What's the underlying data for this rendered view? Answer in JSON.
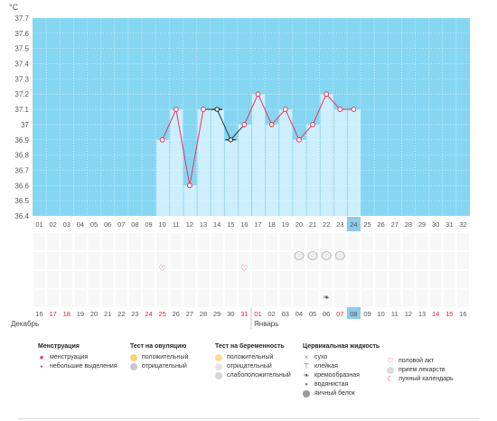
{
  "unit_label": "°C",
  "chart_data": {
    "type": "line",
    "title": "",
    "ylabel": "°C",
    "ylim": [
      36.4,
      37.7
    ],
    "y_ticks": [
      "36.4",
      "36.5",
      "36.6",
      "36.7",
      "36.8",
      "36.9",
      "37",
      "37.1",
      "37.2",
      "37.3",
      "37.4",
      "37.5",
      "37.6",
      "37.7"
    ],
    "x": [
      "01",
      "02",
      "03",
      "04",
      "05",
      "06",
      "07",
      "08",
      "09",
      "10",
      "11",
      "12",
      "13",
      "14",
      "15",
      "16",
      "17",
      "18",
      "19",
      "20",
      "21",
      "22",
      "23",
      "24",
      "25",
      "26",
      "27",
      "28",
      "29",
      "30",
      "31",
      "32"
    ],
    "highlight_day": "24",
    "series": [
      {
        "points": [
          {
            "x": 10,
            "y": 36.9,
            "type": "normal"
          },
          {
            "x": 11,
            "y": 37.1,
            "type": "normal"
          },
          {
            "x": 12,
            "y": 36.6,
            "type": "normal"
          },
          {
            "x": 13,
            "y": 37.1,
            "type": "normal"
          },
          {
            "x": 14,
            "y": 37.1,
            "type": "excluded"
          },
          {
            "x": 15,
            "y": 36.9,
            "type": "excluded"
          },
          {
            "x": 16,
            "y": 37.0,
            "type": "normal"
          },
          {
            "x": 17,
            "y": 37.2,
            "type": "normal"
          },
          {
            "x": 18,
            "y": 37.0,
            "type": "normal"
          },
          {
            "x": 19,
            "y": 37.1,
            "type": "normal"
          },
          {
            "x": 20,
            "y": 36.9,
            "type": "normal"
          },
          {
            "x": 21,
            "y": 37.0,
            "type": "normal"
          },
          {
            "x": 22,
            "y": 37.2,
            "type": "normal"
          },
          {
            "x": 23,
            "y": 37.1,
            "type": "normal"
          },
          {
            "x": 24,
            "y": 37.1,
            "type": "normal"
          }
        ]
      }
    ],
    "colors": {
      "plot_bg": "#86d6f2",
      "bar_fill": "#cdeefb",
      "line": "#e8345c",
      "excluded_line": "#333333",
      "highlight": "#8ecbe8",
      "red_date": "#e02040"
    },
    "dates": [
      {
        "d": "16",
        "red": false
      },
      {
        "d": "17",
        "red": true
      },
      {
        "d": "18",
        "red": true
      },
      {
        "d": "19",
        "red": false
      },
      {
        "d": "20",
        "red": false
      },
      {
        "d": "21",
        "red": false
      },
      {
        "d": "22",
        "red": false
      },
      {
        "d": "23",
        "red": false
      },
      {
        "d": "24",
        "red": true
      },
      {
        "d": "25",
        "red": true
      },
      {
        "d": "26",
        "red": false
      },
      {
        "d": "27",
        "red": false
      },
      {
        "d": "28",
        "red": false
      },
      {
        "d": "29",
        "red": false
      },
      {
        "d": "30",
        "red": false
      },
      {
        "d": "31",
        "red": true
      },
      {
        "d": "01",
        "red": true
      },
      {
        "d": "02",
        "red": false
      },
      {
        "d": "03",
        "red": false
      },
      {
        "d": "04",
        "red": false
      },
      {
        "d": "05",
        "red": false
      },
      {
        "d": "06",
        "red": false
      },
      {
        "d": "07",
        "red": true
      },
      {
        "d": "08",
        "red": false
      },
      {
        "d": "09",
        "red": false
      },
      {
        "d": "10",
        "red": false
      },
      {
        "d": "11",
        "red": false
      },
      {
        "d": "12",
        "red": false
      },
      {
        "d": "13",
        "red": false
      },
      {
        "d": "14",
        "red": true
      },
      {
        "d": "15",
        "red": true
      },
      {
        "d": "16",
        "red": false
      }
    ],
    "months": [
      {
        "name": "Декабрь",
        "start_day": 1
      },
      {
        "name": "Январь",
        "start_day": 17
      }
    ],
    "markers": [
      {
        "day": 10,
        "kind": "heart"
      },
      {
        "day": 16,
        "kind": "heart"
      },
      {
        "day": 20,
        "kind": "egg"
      },
      {
        "day": 21,
        "kind": "egg"
      },
      {
        "day": 22,
        "kind": "egg"
      },
      {
        "day": 23,
        "kind": "egg"
      },
      {
        "day": 22,
        "kind": "creamy"
      }
    ]
  },
  "legend": {
    "menstruation": {
      "title": "Менструация",
      "items": [
        "менструация",
        "небольшие выделения"
      ]
    },
    "ovulation_test": {
      "title": "Тест на овуляцию",
      "items": [
        "положительный",
        "отрицательный"
      ]
    },
    "pregnancy_test": {
      "title": "Тест на беременность",
      "items": [
        "положительный",
        "отрицательный",
        "слабоположительный"
      ]
    },
    "cervical_fluid": {
      "title": "Цервикальная жидкость",
      "items": [
        "сухо",
        "клейкая",
        "кремообразная",
        "водянистая",
        "яичный белок"
      ]
    },
    "other": {
      "items": [
        "половой акт",
        "прием лекарств",
        "лунный календарь"
      ]
    }
  }
}
